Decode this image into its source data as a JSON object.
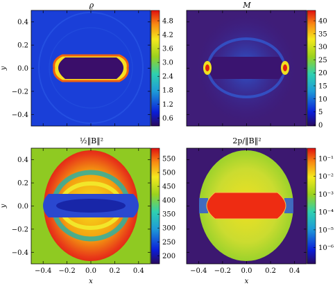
{
  "figure": {
    "panels": [
      {
        "id": "rho",
        "title": "ϱ",
        "xlabel": "",
        "ylabel": "y",
        "show_x_ticklabels": false,
        "show_y_ticklabels": true,
        "colormap": "jet",
        "cbar_ticks": [
          "4.8",
          "4.2",
          "3.6",
          "3.0",
          "2.4",
          "1.8",
          "1.2",
          "0.6"
        ],
        "field": "density"
      },
      {
        "id": "mach",
        "title": "M",
        "xlabel": "",
        "ylabel": "",
        "show_x_ticklabels": false,
        "show_y_ticklabels": false,
        "colormap": "jet",
        "cbar_ticks": [
          "40",
          "35",
          "30",
          "25",
          "20",
          "15",
          "10",
          "5",
          "0"
        ],
        "field": "mach"
      },
      {
        "id": "bmag",
        "title": "½‖B‖²",
        "xlabel": "x",
        "ylabel": "y",
        "show_x_ticklabels": true,
        "show_y_ticklabels": true,
        "colormap": "jet",
        "cbar_ticks": [
          "550",
          "500",
          "450",
          "400",
          "350",
          "300",
          "250",
          "200"
        ],
        "field": "magnetic"
      },
      {
        "id": "beta",
        "title": "2p/‖B‖²",
        "xlabel": "x",
        "ylabel": "",
        "show_x_ticklabels": true,
        "show_y_ticklabels": false,
        "colormap": "jet",
        "cbar_ticks": [
          "10⁻¹",
          "10⁻²",
          "10⁻³",
          "10⁻⁴",
          "10⁻⁵",
          "10⁻⁶"
        ],
        "field": "beta"
      }
    ],
    "x_ticks": [
      "−0.4",
      "−0.2",
      "0.0",
      "0.2",
      "0.4"
    ],
    "y_ticks": [
      "0.4",
      "0.2",
      "0.0",
      "−0.2",
      "−0.4"
    ]
  },
  "chart_data": [
    {
      "type": "heatmap",
      "title": "ϱ",
      "ylabel": "y",
      "xlim": [
        -0.5,
        0.5
      ],
      "ylim": [
        -0.5,
        0.5
      ],
      "colorbar": {
        "min": 0.2,
        "max": 5.0,
        "ticks": [
          0.6,
          1.2,
          1.8,
          2.4,
          3.0,
          3.6,
          4.2,
          4.8
        ]
      }
    },
    {
      "type": "heatmap",
      "title": "M",
      "xlim": [
        -0.5,
        0.5
      ],
      "ylim": [
        -0.5,
        0.5
      ],
      "colorbar": {
        "min": 0,
        "max": 43,
        "ticks": [
          0,
          5,
          10,
          15,
          20,
          25,
          30,
          35,
          40
        ]
      }
    },
    {
      "type": "heatmap",
      "title": "½‖B‖²",
      "xlabel": "x",
      "ylabel": "y",
      "xlim": [
        -0.5,
        0.5
      ],
      "ylim": [
        -0.5,
        0.5
      ],
      "colorbar": {
        "min": 200,
        "max": 590,
        "ticks": [
          200,
          250,
          300,
          350,
          400,
          450,
          500,
          550
        ]
      }
    },
    {
      "type": "heatmap",
      "title": "2p/‖B‖²",
      "xlabel": "x",
      "xlim": [
        -0.5,
        0.5
      ],
      "ylim": [
        -0.5,
        0.5
      ],
      "colorbar": {
        "min": 1e-07,
        "max": 0.1,
        "scale": "log",
        "ticks": [
          1e-06,
          1e-05,
          0.0001,
          0.001,
          0.01,
          0.1
        ]
      }
    }
  ]
}
